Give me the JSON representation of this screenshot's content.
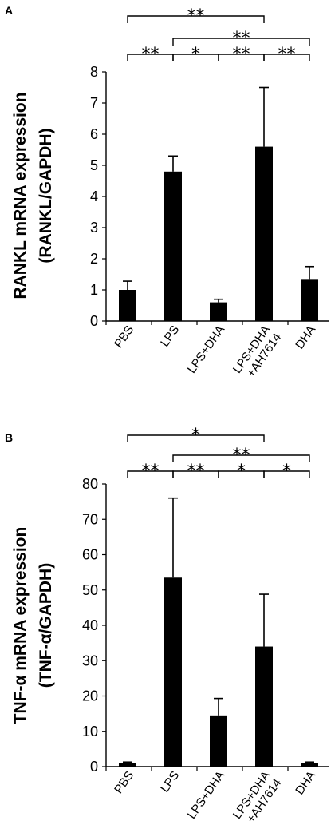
{
  "chart_data": [
    {
      "type": "bar",
      "panel": "A",
      "ylabel_line1": "RANKL mRNA expression",
      "ylabel_line2": "(RANKL/GAPDH)",
      "categories": [
        [
          "PBS"
        ],
        [
          "LPS"
        ],
        [
          "LPS+DHA"
        ],
        [
          "LPS+DHA",
          "+AH7614"
        ],
        [
          "DHA"
        ]
      ],
      "values": [
        1.0,
        4.8,
        0.6,
        5.6,
        1.35
      ],
      "errors": [
        0.28,
        0.5,
        0.1,
        1.9,
        0.4
      ],
      "ylim": [
        0,
        8
      ],
      "yticks": [
        "0",
        "1",
        "2",
        "3",
        "4",
        "5",
        "6",
        "7",
        "8"
      ],
      "significance": [
        {
          "from": 0,
          "to": 1,
          "label": "**"
        },
        {
          "from": 1,
          "to": 2,
          "label": "*"
        },
        {
          "from": 2,
          "to": 3,
          "label": "**"
        },
        {
          "from": 3,
          "to": 4,
          "label": "**"
        },
        {
          "from": 1,
          "to": 4,
          "label": "**"
        },
        {
          "from": 0,
          "to": 3,
          "label": "**"
        }
      ]
    },
    {
      "type": "bar",
      "panel": "B",
      "ylabel_line1": "TNF-α mRNA expression",
      "ylabel_line2": "(TNF-α/GAPDH)",
      "categories": [
        [
          "PBS"
        ],
        [
          "LPS"
        ],
        [
          "LPS+DHA"
        ],
        [
          "LPS+DHA",
          "+AH7614"
        ],
        [
          "DHA"
        ]
      ],
      "values": [
        1.0,
        53.5,
        14.5,
        34.0,
        1.0
      ],
      "errors": [
        0.3,
        22.5,
        4.8,
        14.8,
        0.3
      ],
      "ylim": [
        0,
        80
      ],
      "yticks": [
        "0",
        "10",
        "20",
        "30",
        "40",
        "50",
        "60",
        "70",
        "80"
      ],
      "significance": [
        {
          "from": 0,
          "to": 1,
          "label": "**"
        },
        {
          "from": 1,
          "to": 2,
          "label": "**"
        },
        {
          "from": 2,
          "to": 3,
          "label": "*"
        },
        {
          "from": 3,
          "to": 4,
          "label": "*"
        },
        {
          "from": 1,
          "to": 4,
          "label": "**"
        },
        {
          "from": 0,
          "to": 3,
          "label": "*"
        }
      ]
    }
  ]
}
